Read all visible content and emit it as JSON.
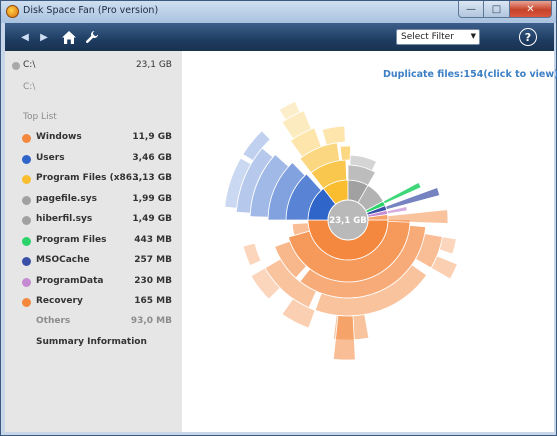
{
  "window": {
    "title": "Disk Space Fan (Pro version)",
    "min": "—",
    "max": "□",
    "close": "✕"
  },
  "toolbar": {
    "back_icon": "◀",
    "forward_icon": "▶",
    "filter": {
      "selected": "Select Filter"
    },
    "help": "?"
  },
  "sidebar": {
    "drive": {
      "label": "C:\\",
      "size": "23,1 GB",
      "path": "C:\\"
    },
    "toplist_title": "Top List",
    "items": [
      {
        "label": "Windows",
        "size": "11,9 GB",
        "color": "#f4883e"
      },
      {
        "label": "Users",
        "size": "3,46 GB",
        "color": "#2f64c9"
      },
      {
        "label": "Program Files (x86...",
        "size": "3,13 GB",
        "color": "#f9bd2f"
      },
      {
        "label": "pagefile.sys",
        "size": "1,99 GB",
        "color": "#a1a1a1"
      },
      {
        "label": "hiberfil.sys",
        "size": "1,49 GB",
        "color": "#a1a1a1"
      },
      {
        "label": "Program Files",
        "size": "443 MB",
        "color": "#2bd36b"
      },
      {
        "label": "MSOCache",
        "size": "257 MB",
        "color": "#3a4fa6"
      },
      {
        "label": "ProgramData",
        "size": "230 MB",
        "color": "#c58ad1"
      },
      {
        "label": "Recovery",
        "size": "165 MB",
        "color": "#f4883e"
      }
    ],
    "others": {
      "label": "Others",
      "size": "93,0 MB"
    },
    "summary": "Summary Information"
  },
  "main": {
    "duplicate_link": "Duplicate files:154(click to view)",
    "center_label": "23,1 GB"
  }
}
